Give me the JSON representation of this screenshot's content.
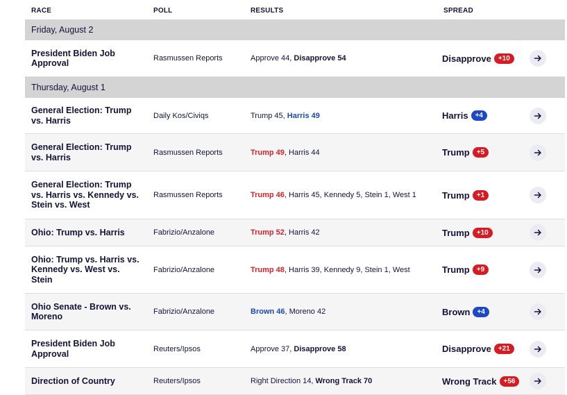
{
  "headers": {
    "race": "RACE",
    "poll": "POLL",
    "results": "RESULTS",
    "spread": "SPREAD"
  },
  "dates": [
    "Friday, August 2",
    "Thursday, August 1"
  ],
  "rows": [
    {
      "race": "President Biden Job Approval",
      "poll": "Rasmussen Reports",
      "results": [
        {
          "text": "Approve 44, ",
          "style": "plain"
        },
        {
          "text": "Disapprove 54",
          "style": "win-dark"
        }
      ],
      "spread": {
        "leader": "Disapprove",
        "margin": "+10",
        "color": "red"
      }
    },
    {
      "race": "General Election: Trump vs. Harris",
      "poll": "Daily Kos/Civiqs",
      "results": [
        {
          "text": "Trump 45, ",
          "style": "plain"
        },
        {
          "text": "Harris 49",
          "style": "win-blue"
        }
      ],
      "spread": {
        "leader": "Harris",
        "margin": "+4",
        "color": "blue"
      }
    },
    {
      "race": "General Election: Trump vs. Harris",
      "poll": "Rasmussen Reports",
      "results": [
        {
          "text": "Trump 49",
          "style": "win-red"
        },
        {
          "text": ", Harris 44",
          "style": "plain"
        }
      ],
      "spread": {
        "leader": "Trump",
        "margin": "+5",
        "color": "red"
      }
    },
    {
      "race": "General Election: Trump vs. Harris vs. Kennedy vs. Stein vs. West",
      "poll": "Rasmussen Reports",
      "results": [
        {
          "text": "Trump 46",
          "style": "win-red"
        },
        {
          "text": ", Harris 45, Kennedy 5, Stein 1, West 1",
          "style": "plain"
        }
      ],
      "spread": {
        "leader": "Trump",
        "margin": "+1",
        "color": "red"
      }
    },
    {
      "race": "Ohio: Trump vs. Harris",
      "poll": "Fabrizio/Anzalone",
      "results": [
        {
          "text": "Trump 52",
          "style": "win-red"
        },
        {
          "text": ", Harris 42",
          "style": "plain"
        }
      ],
      "spread": {
        "leader": "Trump",
        "margin": "+10",
        "color": "red"
      }
    },
    {
      "race": "Ohio: Trump vs. Harris vs. Kennedy vs. West vs. Stein",
      "poll": "Fabrizio/Anzalone",
      "results": [
        {
          "text": "Trump 48",
          "style": "win-red"
        },
        {
          "text": ", Harris 39, Kennedy 9, Stein 1, West",
          "style": "plain"
        }
      ],
      "spread": {
        "leader": "Trump",
        "margin": "+9",
        "color": "red"
      }
    },
    {
      "race": "Ohio Senate - Brown vs. Moreno",
      "poll": "Fabrizio/Anzalone",
      "results": [
        {
          "text": "Brown 46",
          "style": "win-blue"
        },
        {
          "text": ", Moreno 42",
          "style": "plain"
        }
      ],
      "spread": {
        "leader": "Brown",
        "margin": "+4",
        "color": "blue"
      }
    },
    {
      "race": "President Biden Job Approval",
      "poll": "Reuters/Ipsos",
      "results": [
        {
          "text": "Approve 37, ",
          "style": "plain"
        },
        {
          "text": "Disapprove 58",
          "style": "win-dark"
        }
      ],
      "spread": {
        "leader": "Disapprove",
        "margin": "+21",
        "color": "red"
      }
    },
    {
      "race": "Direction of Country",
      "poll": "Reuters/Ipsos",
      "results": [
        {
          "text": "Right Direction 14, ",
          "style": "plain"
        },
        {
          "text": "Wrong Track 70",
          "style": "win-dark"
        }
      ],
      "spread": {
        "leader": "Wrong Track",
        "margin": "+56",
        "color": "red"
      }
    }
  ],
  "icons": {
    "row_link": "arrow-right-icon"
  },
  "colors": {
    "red": "#d81b22",
    "blue": "#1d48c8",
    "text": "#13133a",
    "date_band": "#d4d4d4"
  }
}
